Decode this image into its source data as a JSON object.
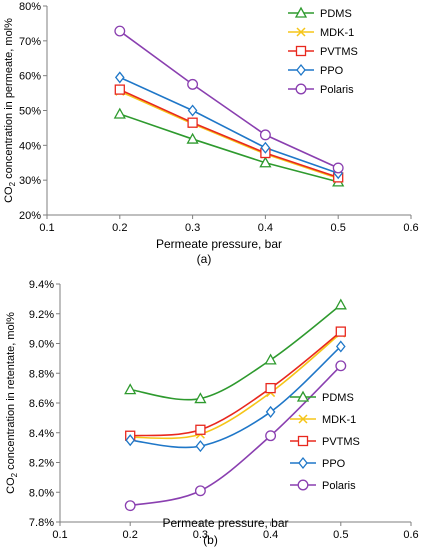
{
  "panel_labels": [
    "(a)",
    "(b)"
  ],
  "legend_markers": {
    "PDMS": "triangle",
    "MDK-1": "x",
    "PVTMS": "square",
    "PPO": "diamond",
    "Polaris": "circle"
  },
  "chart_data": [
    {
      "type": "line",
      "title": "",
      "panel_label": "(a)",
      "xlabel": "Permeate pressure, bar",
      "ylabel": "CO2 concentration in permeate, mol%",
      "xlim": [
        0.1,
        0.6
      ],
      "ylim": [
        20,
        80
      ],
      "x_ticks": [
        "0.1",
        "0.2",
        "0.3",
        "0.4",
        "0.5",
        "0.6"
      ],
      "y_ticks": [
        "20%",
        "30%",
        "40%",
        "50%",
        "60%",
        "70%",
        "80%"
      ],
      "grid": false,
      "legend_position": "top-right",
      "line_style": "straight",
      "x": [
        0.2,
        0.3,
        0.4,
        0.5
      ],
      "series": [
        {
          "name": "PDMS",
          "color": "#2e9a2e",
          "values": [
            49.0,
            41.8,
            35.0,
            29.5
          ]
        },
        {
          "name": "MDK-1",
          "color": "#f5c518",
          "values": [
            55.5,
            46.2,
            37.5,
            30.5
          ]
        },
        {
          "name": "PVTMS",
          "color": "#e8281e",
          "values": [
            56.0,
            46.5,
            37.8,
            30.8
          ]
        },
        {
          "name": "PPO",
          "color": "#1f77c8",
          "values": [
            59.5,
            50.0,
            39.3,
            32.0
          ]
        },
        {
          "name": "Polaris",
          "color": "#8a3fb0",
          "values": [
            72.8,
            57.5,
            43.0,
            33.5
          ]
        }
      ]
    },
    {
      "type": "line",
      "title": "",
      "panel_label": "(b)",
      "xlabel": "Permeate pressure, bar",
      "ylabel": "CO2 concentration in retentate, mol%",
      "xlim": [
        0.1,
        0.6
      ],
      "ylim": [
        7.8,
        9.4
      ],
      "x_ticks": [
        "0.1",
        "0.2",
        "0.3",
        "0.4",
        "0.5",
        "0.6"
      ],
      "y_ticks": [
        "7.8%",
        "8.0%",
        "8.2%",
        "8.4%",
        "8.6%",
        "8.8%",
        "9.0%",
        "9.2%",
        "9.4%"
      ],
      "grid": false,
      "legend_position": "right",
      "line_style": "smooth",
      "x": [
        0.2,
        0.3,
        0.4,
        0.5
      ],
      "series": [
        {
          "name": "PDMS",
          "color": "#2e9a2e",
          "values": [
            8.69,
            8.63,
            8.89,
            9.26
          ]
        },
        {
          "name": "MDK-1",
          "color": "#f5c518",
          "values": [
            8.37,
            8.39,
            8.67,
            9.07
          ]
        },
        {
          "name": "PVTMS",
          "color": "#e8281e",
          "values": [
            8.38,
            8.42,
            8.7,
            9.08
          ]
        },
        {
          "name": "PPO",
          "color": "#1f77c8",
          "values": [
            8.35,
            8.31,
            8.54,
            8.98
          ]
        },
        {
          "name": "Polaris",
          "color": "#8a3fb0",
          "values": [
            7.91,
            8.01,
            8.38,
            8.85
          ]
        }
      ]
    }
  ]
}
